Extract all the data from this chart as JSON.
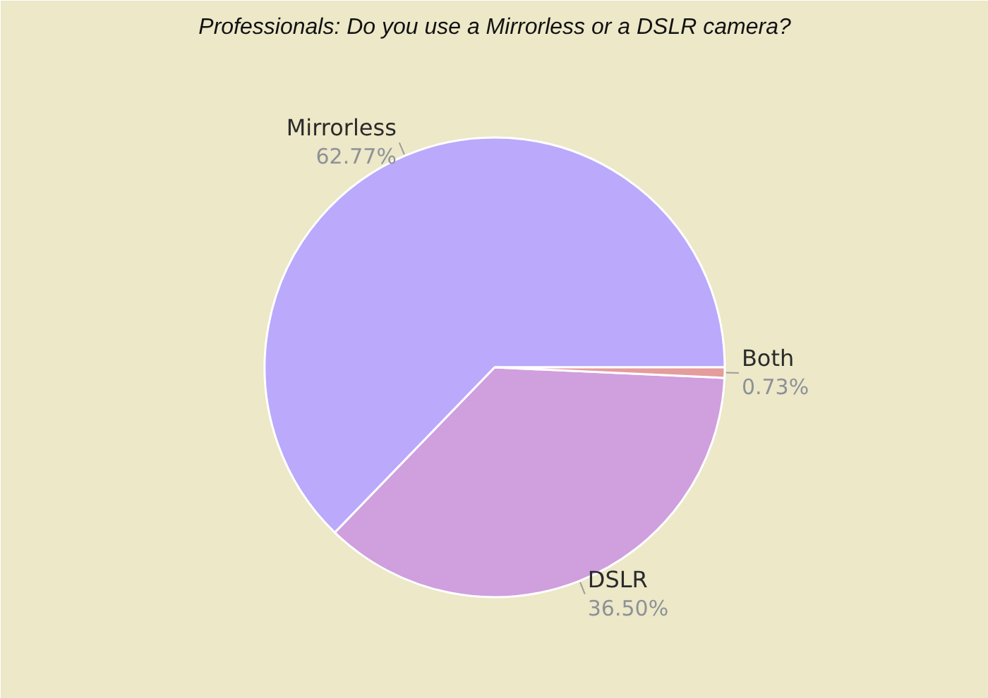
{
  "chart_data": {
    "type": "pie",
    "title": "Professionals: Do you use a Mirrorless or a DSLR camera?",
    "categories": [
      "Mirrorless",
      "DSLR",
      "Both"
    ],
    "values": [
      62.77,
      36.5,
      0.73
    ],
    "colors": [
      "#bba9fb",
      "#d09fde",
      "#e49c9c"
    ],
    "value_labels": [
      "62.77%",
      "36.50%",
      "0.73%"
    ]
  }
}
